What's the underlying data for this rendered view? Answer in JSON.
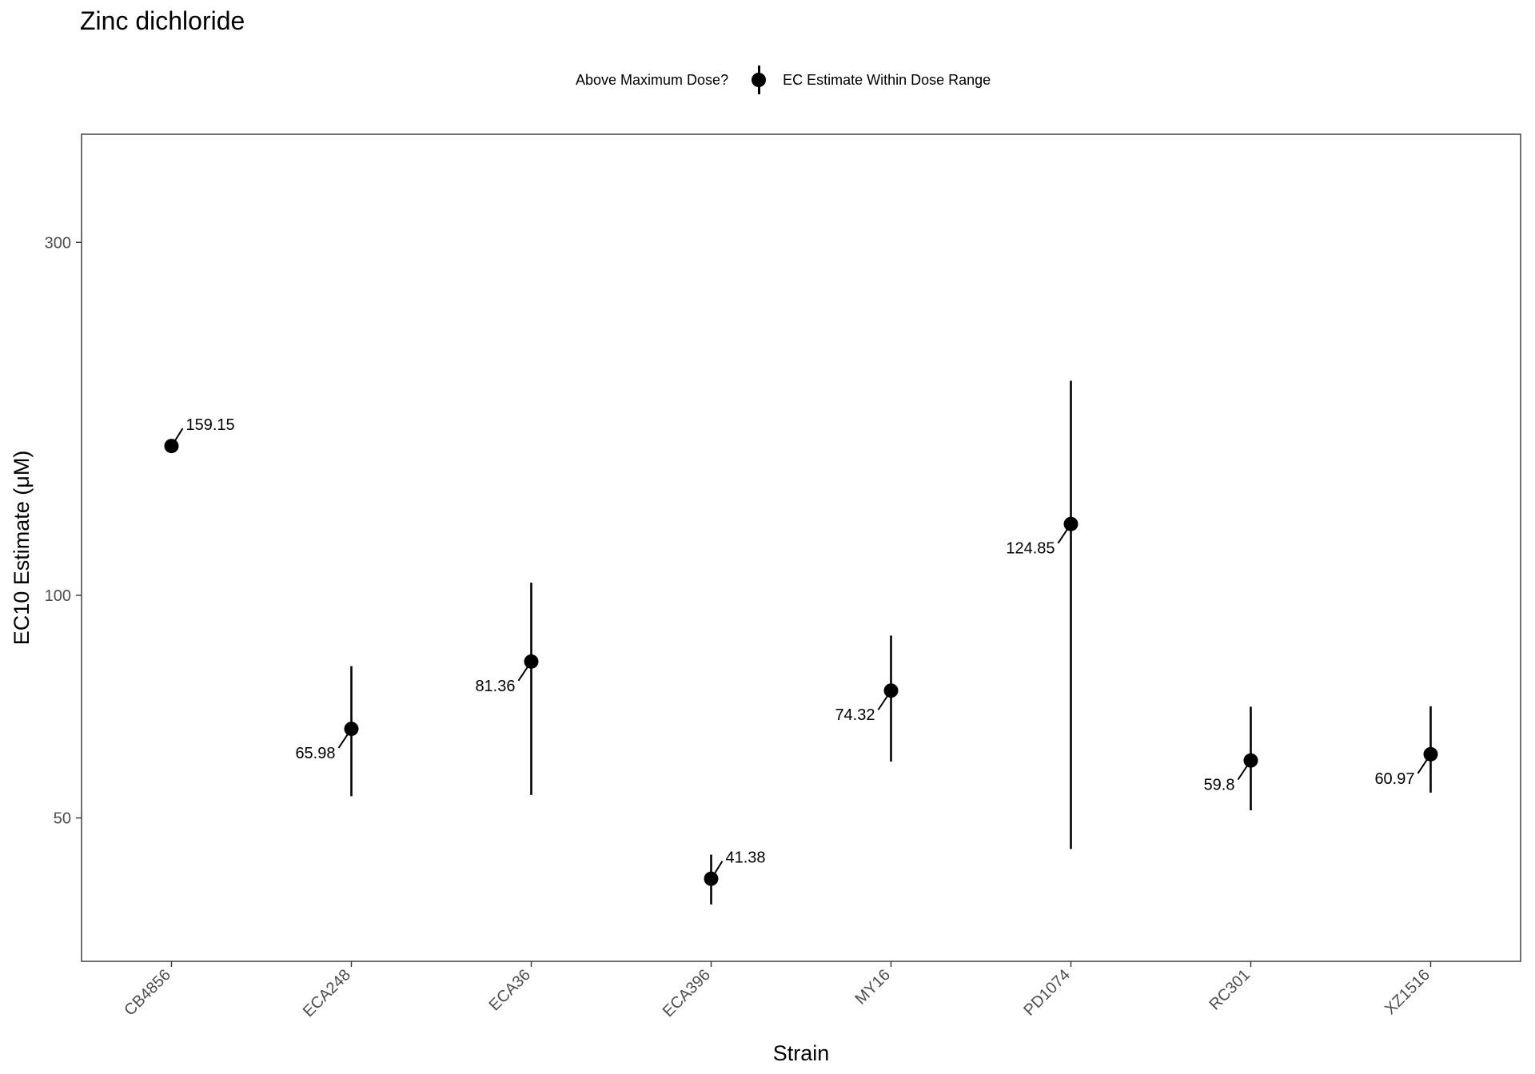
{
  "chart_data": {
    "type": "scatter",
    "title": "Zinc dichloride",
    "xlabel": "Strain",
    "ylabel": "EC10 Estimate (μM)",
    "y_scale": "log",
    "ylim": [
      32,
      420
    ],
    "y_ticks": [
      50,
      100,
      300
    ],
    "grid": false,
    "legend": {
      "title": "Above Maximum Dose?",
      "placement": "top",
      "entries": [
        "EC Estimate Within Dose Range"
      ]
    },
    "categories": [
      "CB4856",
      "ECA248",
      "ECA36",
      "ECA396",
      "MY16",
      "PD1074",
      "RC301",
      "XZ1516"
    ],
    "points": [
      {
        "strain": "CB4856",
        "value": 159.15,
        "label": "159.15",
        "lower": null,
        "upper": null,
        "label_side": "right"
      },
      {
        "strain": "ECA248",
        "value": 65.98,
        "label": "65.98",
        "lower": 53.5,
        "upper": 80.2,
        "label_side": "left"
      },
      {
        "strain": "ECA36",
        "value": 81.36,
        "label": "81.36",
        "lower": 53.7,
        "upper": 104,
        "label_side": "left"
      },
      {
        "strain": "ECA396",
        "value": 41.38,
        "label": "41.38",
        "lower": 38.2,
        "upper": 44.6,
        "label_side": "right"
      },
      {
        "strain": "MY16",
        "value": 74.32,
        "label": "74.32",
        "lower": 59.6,
        "upper": 88.2,
        "label_side": "left"
      },
      {
        "strain": "PD1074",
        "value": 124.85,
        "label": "124.85",
        "lower": 45.4,
        "upper": 195,
        "label_side": "left"
      },
      {
        "strain": "RC301",
        "value": 59.8,
        "label": "59.8",
        "lower": 51.2,
        "upper": 70.7,
        "label_side": "left"
      },
      {
        "strain": "XZ1516",
        "value": 60.97,
        "label": "60.97",
        "lower": 54.1,
        "upper": 70.8,
        "label_side": "left"
      }
    ],
    "colors": {
      "point": "#000000",
      "axis": "#333333",
      "tick_text": "#4d4d4d"
    }
  }
}
